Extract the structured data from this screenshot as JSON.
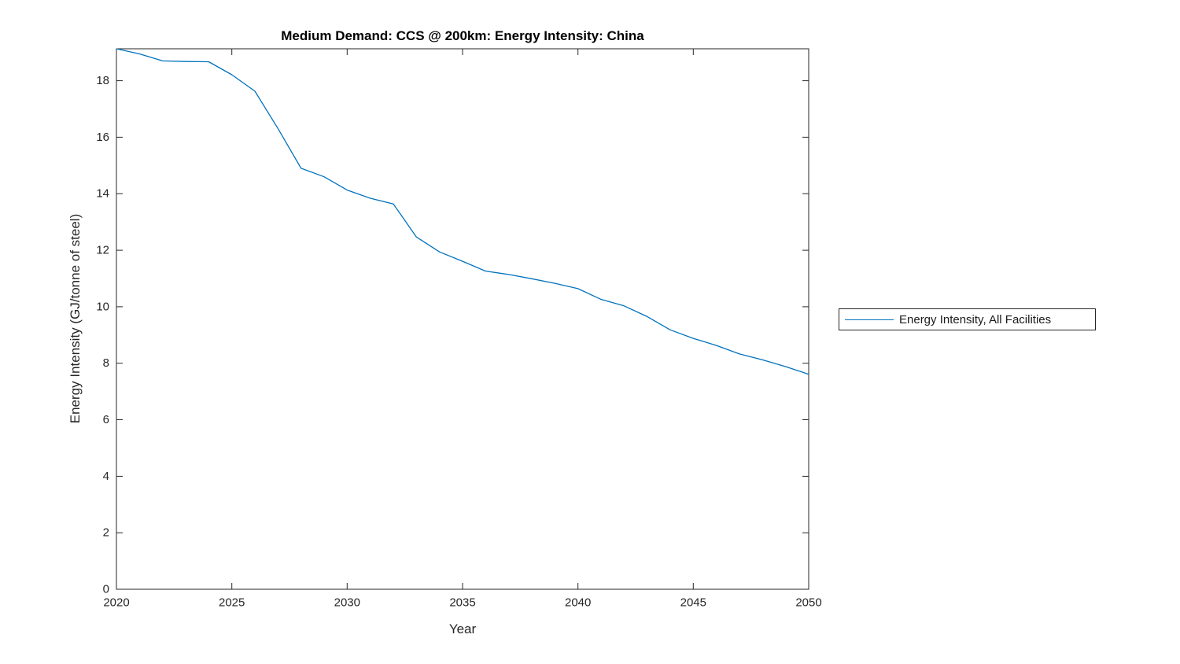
{
  "page": {
    "background": "#ffffff"
  },
  "chart_data": {
    "type": "line",
    "title": "Medium Demand: CCS @ 200km: Energy Intensity: China",
    "xlabel": "Year",
    "ylabel": "Energy Intensity (GJ/tonne of steel)",
    "xlim": [
      2020,
      2050
    ],
    "ylim": [
      0,
      19.13
    ],
    "xticks": [
      2020,
      2025,
      2030,
      2035,
      2040,
      2045,
      2050
    ],
    "yticks": [
      0,
      2,
      4,
      6,
      8,
      10,
      12,
      14,
      16,
      18
    ],
    "grid": false,
    "legend": {
      "position": "outside-right",
      "entries": [
        "Energy Intensity, All Facilities"
      ]
    },
    "colors": {
      "line": "#0072BD",
      "axis": "#262626",
      "title": "#000000"
    },
    "series": [
      {
        "name": "Energy Intensity, All Facilities",
        "x": [
          2020,
          2021,
          2022,
          2023,
          2024,
          2025,
          2026,
          2027,
          2028,
          2029,
          2030,
          2031,
          2032,
          2033,
          2034,
          2035,
          2036,
          2037,
          2038,
          2039,
          2040,
          2041,
          2042,
          2043,
          2044,
          2045,
          2046,
          2047,
          2048,
          2049,
          2050
        ],
        "y": [
          19.13,
          18.95,
          18.7,
          18.68,
          18.67,
          18.21,
          17.63,
          16.31,
          14.9,
          14.6,
          14.13,
          13.84,
          13.64,
          12.47,
          11.94,
          11.61,
          11.26,
          11.14,
          10.99,
          10.83,
          10.64,
          10.26,
          10.03,
          9.65,
          9.18,
          8.88,
          8.63,
          8.33,
          8.12,
          7.88,
          7.61
        ]
      }
    ]
  }
}
